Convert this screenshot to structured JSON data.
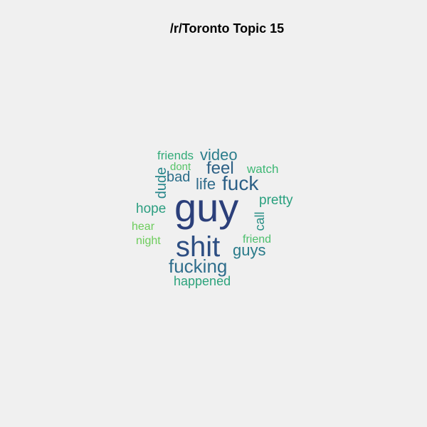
{
  "title": "/r/Toronto Topic 15",
  "words": [
    {
      "id": "guy",
      "text": "guy",
      "color": "#2b3f7a"
    },
    {
      "id": "shit",
      "text": "shit",
      "color": "#2d4e82"
    },
    {
      "id": "fuck",
      "text": "fuck",
      "color": "#2b5f86"
    },
    {
      "id": "fucking",
      "text": "fucking",
      "color": "#2f6e8c"
    },
    {
      "id": "feel",
      "text": "feel",
      "color": "#2d6085"
    },
    {
      "id": "life",
      "text": "life",
      "color": "#2e6a8a"
    },
    {
      "id": "guys",
      "text": "guys",
      "color": "#287a89"
    },
    {
      "id": "video",
      "text": "video",
      "color": "#2b7d8b"
    },
    {
      "id": "bad",
      "text": "bad",
      "color": "#2a6d89"
    },
    {
      "id": "dude",
      "text": "dude",
      "color": "#26858a"
    },
    {
      "id": "pretty",
      "text": "pretty",
      "color": "#29a07e"
    },
    {
      "id": "call",
      "text": "call",
      "color": "#2a8f86"
    },
    {
      "id": "hope",
      "text": "hope",
      "color": "#2c9e80"
    },
    {
      "id": "happened",
      "text": "happened",
      "color": "#2da37c"
    },
    {
      "id": "friends",
      "text": "friends",
      "color": "#33ab79"
    },
    {
      "id": "watch",
      "text": "watch",
      "color": "#3db774"
    },
    {
      "id": "dont",
      "text": "dont",
      "color": "#56c468"
    },
    {
      "id": "friend",
      "text": "friend",
      "color": "#4cbf6c"
    },
    {
      "id": "hear",
      "text": "hear",
      "color": "#6ccc5b"
    },
    {
      "id": "night",
      "text": "night",
      "color": "#6ccc5b"
    }
  ]
}
